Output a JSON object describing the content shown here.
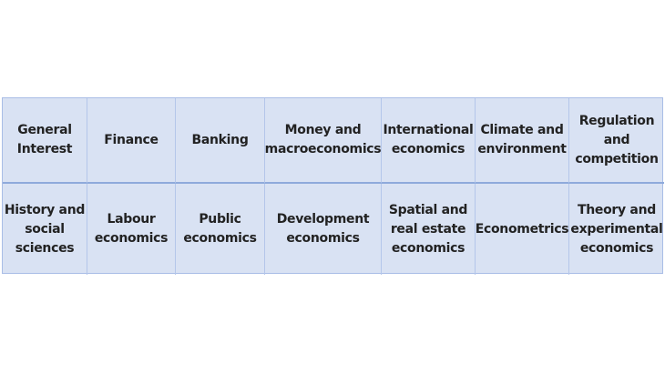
{
  "rows": [
    [
      "General Interest",
      "Finance",
      "Banking",
      "Money and macroeconomics",
      "International economics",
      "Climate and environment",
      "Regulation and competition"
    ],
    [
      "History and social sciences",
      "Labour economics",
      "Public economics",
      "Development economics",
      "Spatial and real estate economics",
      "Econometrics",
      "Theory and experimental economics"
    ]
  ],
  "colors": {
    "cell_background": "#d9e2f3",
    "border": "#a9bde6"
  }
}
